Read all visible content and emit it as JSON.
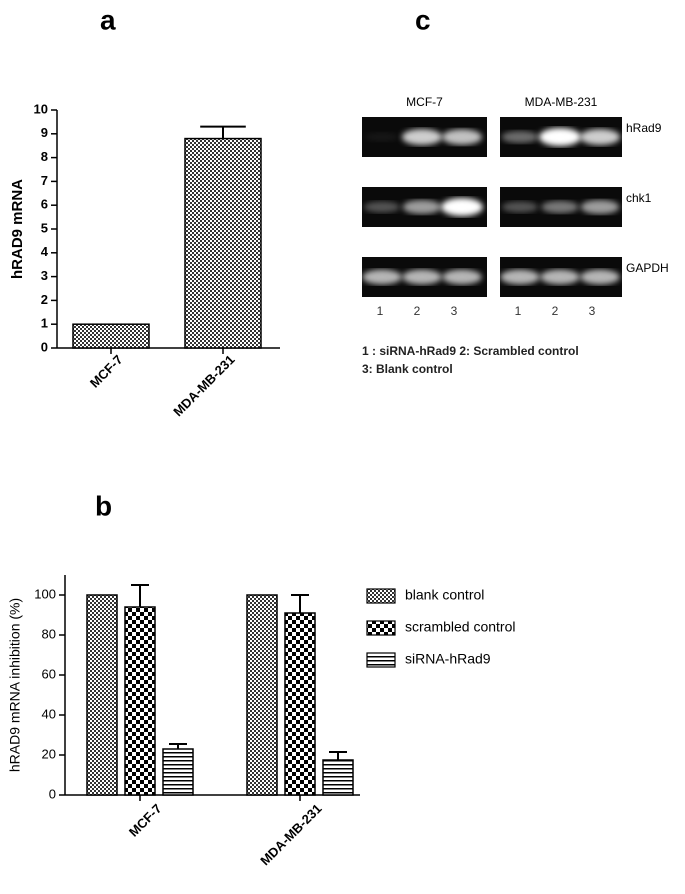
{
  "chart_data": [
    {
      "type": "bar",
      "panel_label": "a",
      "ylabel": "hRAD9 mRNA",
      "categories": [
        "MCF-7",
        "MDA-MB-231"
      ],
      "values": [
        1,
        8.8
      ],
      "errors": [
        null,
        0.5
      ],
      "ylim": [
        0,
        10
      ],
      "yticks": [
        0,
        1,
        2,
        3,
        4,
        5,
        6,
        7,
        8,
        9,
        10
      ]
    },
    {
      "type": "grouped_bar",
      "panel_label": "b",
      "ylabel": "hRAD9 mRNA inhibition (%)",
      "categories": [
        "MCF-7",
        "MDA-MB-231"
      ],
      "series": [
        {
          "name": "blank control",
          "values": [
            100,
            100
          ],
          "errors": [
            null,
            null
          ]
        },
        {
          "name": "scrambled control",
          "values": [
            94,
            91
          ],
          "errors": [
            11,
            9
          ]
        },
        {
          "name": "siRNA-hRad9",
          "values": [
            23,
            17.5
          ],
          "errors": [
            2.5,
            4
          ]
        }
      ],
      "ylim": [
        0,
        110
      ],
      "yticks": [
        0,
        20,
        40,
        60,
        80,
        100
      ],
      "legend": "right"
    }
  ],
  "gel": {
    "panel_label": "c",
    "cell_lines": [
      "MCF-7",
      "MDA-MB-231"
    ],
    "rows": [
      "hRad9",
      "chk1",
      "GAPDH"
    ],
    "lanes": [
      "1",
      "2",
      "3"
    ],
    "legend": [
      "1 : siRNA-hRad9 2: Scrambled control",
      "3: Blank control"
    ]
  }
}
